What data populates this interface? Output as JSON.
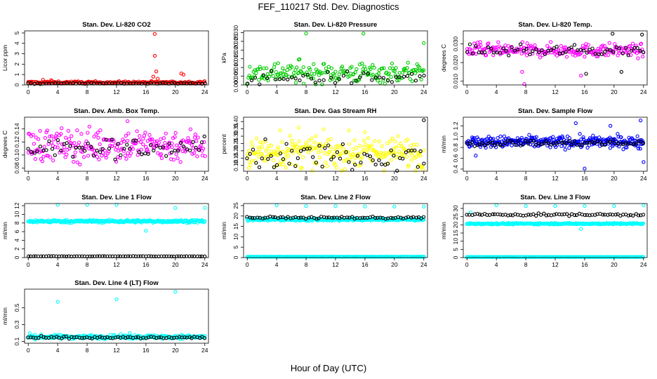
{
  "title": "FEF_110217  Std. Dev. Diagnostics",
  "xlabel": "Hour of Day (UTC)",
  "chart_data": [
    {
      "type": "scatter",
      "title": "Stan. Dev. Li-820 CO2",
      "ylabel": "Licor ppm",
      "ylim": [
        0,
        5.2
      ],
      "yticks": [
        0,
        1,
        2,
        3,
        4,
        5
      ],
      "xticks": [
        0,
        4,
        8,
        12,
        16,
        20,
        24
      ],
      "xlim": [
        -0.5,
        24.5
      ],
      "series": [
        {
          "name": "",
          "color": "#ff0000",
          "base": 0.25,
          "spread": 0.12,
          "count": 170,
          "outliers": [
            [
              2,
              0.5
            ],
            [
              3.1,
              0.45
            ],
            [
              17.2,
              4.9
            ],
            [
              17.2,
              2.8
            ],
            [
              17.4,
              1.3
            ],
            [
              17,
              0.8
            ],
            [
              17.6,
              0.6
            ],
            [
              20.8,
              1.1
            ],
            [
              21.1,
              1.0
            ]
          ]
        },
        {
          "name": "",
          "color": "#000000",
          "base": 0.15,
          "spread": 0.06,
          "count": 60,
          "outliers": []
        }
      ]
    },
    {
      "type": "scatter",
      "title": "Stan. Dev. Li-820 Pressure",
      "ylabel": "kPa",
      "ylim": [
        0,
        0.031
      ],
      "yticks": [
        0.0,
        0.005,
        0.01,
        0.015,
        0.02,
        0.025,
        0.03
      ],
      "ytick_labels": [
        "0.000",
        "0.005",
        "0.010",
        "0.015",
        "0.020",
        "0.025",
        "0.030"
      ],
      "xticks": [
        0,
        4,
        8,
        12,
        16,
        20,
        24
      ],
      "xlim": [
        -0.5,
        24.5
      ],
      "series": [
        {
          "name": "",
          "color": "#00cc00",
          "base": 0.007,
          "spread": 0.0065,
          "count": 200,
          "outliers": [
            [
              8,
              0.0295
            ],
            [
              15.8,
              0.0295
            ],
            [
              24,
              0.024
            ],
            [
              4.2,
              0.0125
            ],
            [
              7,
              0.0145
            ]
          ]
        },
        {
          "name": "",
          "color": "#000000",
          "base": 0.004,
          "spread": 0.004,
          "count": 45,
          "outliers": []
        }
      ]
    },
    {
      "type": "scatter",
      "title": "Stan. Dev. Li-820 Temp.",
      "ylabel": "degrees C",
      "ylim": [
        0.008,
        0.037
      ],
      "yticks": [
        0.01,
        0.02,
        0.03
      ],
      "ytick_labels": [
        "0.010",
        "0.020",
        "0.030"
      ],
      "xticks": [
        0,
        4,
        8,
        12,
        16,
        20,
        24
      ],
      "xlim": [
        -0.5,
        24.5
      ],
      "series": [
        {
          "name": "",
          "color": "#ff00ff",
          "base": 0.0265,
          "spread": 0.004,
          "count": 220,
          "outliers": [
            [
              7.8,
              0.0085
            ],
            [
              7.5,
              0.015
            ],
            [
              15.5,
              0.013
            ],
            [
              1.8,
              0.031
            ]
          ]
        },
        {
          "name": "",
          "color": "#000000",
          "base": 0.0265,
          "spread": 0.003,
          "count": 60,
          "outliers": [
            [
              19.8,
              0.0355
            ],
            [
              23.8,
              0.035
            ],
            [
              21,
              0.015
            ],
            [
              16.2,
              0.014
            ]
          ]
        }
      ]
    },
    {
      "type": "scatter",
      "title": "Stan. Dev. Amb. Box Temp.",
      "ylabel": "degrees C",
      "ylim": [
        0.075,
        0.158
      ],
      "yticks": [
        0.08,
        0.1,
        0.12,
        0.14
      ],
      "ytick_labels": [
        "0.08",
        "0.10",
        "0.12",
        "0.14"
      ],
      "xticks": [
        0,
        4,
        8,
        12,
        16,
        20,
        24
      ],
      "xlim": [
        -0.5,
        24.5
      ],
      "series": [
        {
          "name": "",
          "color": "#ff00ff",
          "base": 0.115,
          "spread": 0.028,
          "count": 240,
          "outliers": [
            [
              13.5,
              0.152
            ]
          ]
        },
        {
          "name": "",
          "color": "#000000",
          "base": 0.11,
          "spread": 0.018,
          "count": 60,
          "outliers": []
        }
      ]
    },
    {
      "type": "scatter",
      "title": "Stan. Dev. Gas Stream RH",
      "ylabel": "percent",
      "ylim": [
        0.06,
        0.43
      ],
      "yticks": [
        0.1,
        0.15,
        0.2,
        0.25,
        0.3,
        0.35,
        0.4
      ],
      "ytick_labels": [
        "0.10",
        "0.15",
        "0.20",
        "0.25",
        "0.30",
        "0.35",
        "0.40"
      ],
      "xticks": [
        0,
        4,
        8,
        12,
        16,
        20,
        24
      ],
      "xlim": [
        -0.5,
        24.5
      ],
      "series": [
        {
          "name": "",
          "color": "#ffff00",
          "base": 0.19,
          "spread": 0.12,
          "count": 260,
          "outliers": [
            [
              7,
              0.36
            ],
            [
              4.5,
              0.34
            ]
          ]
        },
        {
          "name": "",
          "color": "#000000",
          "base": 0.17,
          "spread": 0.1,
          "count": 60,
          "outliers": [
            [
              24,
              0.41
            ]
          ]
        }
      ]
    },
    {
      "type": "scatter",
      "title": "Stan. Dev. Sample Flow",
      "ylabel": "ml/min",
      "ylim": [
        0.36,
        1.36
      ],
      "yticks": [
        0.4,
        0.6,
        0.8,
        1.0,
        1.2
      ],
      "ytick_labels": [
        "0.4",
        "0.6",
        "0.8",
        "1.0",
        "1.2"
      ],
      "xticks": [
        0,
        4,
        8,
        12,
        16,
        20,
        24
      ],
      "xlim": [
        -0.5,
        24.5
      ],
      "series": [
        {
          "name": "",
          "color": "#0000ff",
          "base": 0.9,
          "spread": 0.12,
          "count": 320,
          "outliers": [
            [
              16,
              0.41
            ],
            [
              24,
              0.53
            ],
            [
              14.8,
              1.25
            ],
            [
              23.6,
              1.3
            ],
            [
              19.5,
              1.2
            ],
            [
              1.2,
              0.65
            ]
          ]
        },
        {
          "name": "",
          "color": "#000000",
          "base": 0.88,
          "spread": 0.06,
          "count": 70,
          "outliers": []
        }
      ]
    },
    {
      "type": "scatter",
      "title": "Stan. Dev. Line 1 Flow",
      "ylabel": "ml/min",
      "ylim": [
        0,
        12.5
      ],
      "yticks": [
        0,
        2,
        4,
        6,
        8,
        10,
        12
      ],
      "xticks": [
        0,
        4,
        8,
        12,
        16,
        20,
        24
      ],
      "xlim": [
        -0.5,
        24.5
      ],
      "series": [
        {
          "name": "",
          "color": "#00ffff",
          "base": 8.4,
          "spread": 0.35,
          "count": 300,
          "outliers": [
            [
              4,
              12.2
            ],
            [
              8,
              12.2
            ],
            [
              12,
              12.2
            ],
            [
              16,
              6.2
            ],
            [
              20,
              11.5
            ],
            [
              24,
              11.5
            ]
          ]
        },
        {
          "name": "",
          "color": "#000000",
          "base": 0.3,
          "spread": 0.05,
          "count": 70,
          "outliers": []
        }
      ]
    },
    {
      "type": "scatter",
      "title": "Stan. Dev. Line 2 Flow",
      "ylabel": "ml/min",
      "ylim": [
        0,
        26
      ],
      "yticks": [
        0,
        5,
        10,
        15,
        20,
        25
      ],
      "xticks": [
        0,
        4,
        8,
        12,
        16,
        20,
        24
      ],
      "xlim": [
        -0.5,
        24.5
      ],
      "series": [
        {
          "name": "",
          "color": "#00ffff",
          "base": 18.3,
          "spread": 0.7,
          "count": 300,
          "outliers": [
            [
              4,
              25.2
            ],
            [
              8,
              24.8
            ],
            [
              12,
              24.8
            ],
            [
              16,
              24.6
            ],
            [
              20,
              24.5
            ],
            [
              24,
              24.5
            ]
          ]
        },
        {
          "name": "",
          "color": "#000000",
          "base": 19.2,
          "spread": 0.6,
          "count": 70,
          "outliers": []
        },
        {
          "name": "",
          "color": "#00ffff",
          "base": 0.4,
          "spread": 0.05,
          "count": 200,
          "outliers": []
        }
      ]
    },
    {
      "type": "scatter",
      "title": "Stan. Dev. Line 3 Flow",
      "ylabel": "ml/min",
      "ylim": [
        0,
        33
      ],
      "yticks": [
        0,
        5,
        10,
        15,
        20,
        25,
        30
      ],
      "xticks": [
        0,
        4,
        8,
        12,
        16,
        20,
        24
      ],
      "xlim": [
        -0.5,
        24.5
      ],
      "series": [
        {
          "name": "",
          "color": "#00ffff",
          "base": 20.7,
          "spread": 0.5,
          "count": 300,
          "outliers": [
            [
              4,
              32
            ],
            [
              8,
              31.5
            ],
            [
              12,
              31.5
            ],
            [
              16,
              31.5
            ],
            [
              20,
              31.5
            ],
            [
              24,
              32
            ],
            [
              15.5,
              17.5
            ],
            [
              0.5,
              27.5
            ]
          ]
        },
        {
          "name": "",
          "color": "#000000",
          "base": 26.2,
          "spread": 0.8,
          "count": 70,
          "outliers": []
        },
        {
          "name": "",
          "color": "#00ffff",
          "base": 0.4,
          "spread": 0.05,
          "count": 200,
          "outliers": []
        }
      ]
    },
    {
      "type": "scatter",
      "title": "Stan. Dev. Line 4 (LT) Flow",
      "ylabel": "ml/min",
      "ylim": [
        0.08,
        0.72
      ],
      "yticks": [
        0.1,
        0.3,
        0.5
      ],
      "ytick_labels": [
        "0.1",
        "0.3",
        "0.5"
      ],
      "xticks": [
        0,
        4,
        8,
        12,
        16,
        20,
        24
      ],
      "xlim": [
        -0.5,
        24.5
      ],
      "series": [
        {
          "name": "",
          "color": "#00ffff",
          "base": 0.155,
          "spread": 0.025,
          "count": 300,
          "outliers": [
            [
              4,
              0.57
            ],
            [
              12,
              0.6
            ],
            [
              20,
              0.69
            ],
            [
              0.2,
              0.2
            ],
            [
              13.8,
              0.2
            ]
          ]
        },
        {
          "name": "",
          "color": "#000000",
          "base": 0.145,
          "spread": 0.015,
          "count": 70,
          "outliers": []
        }
      ]
    }
  ]
}
